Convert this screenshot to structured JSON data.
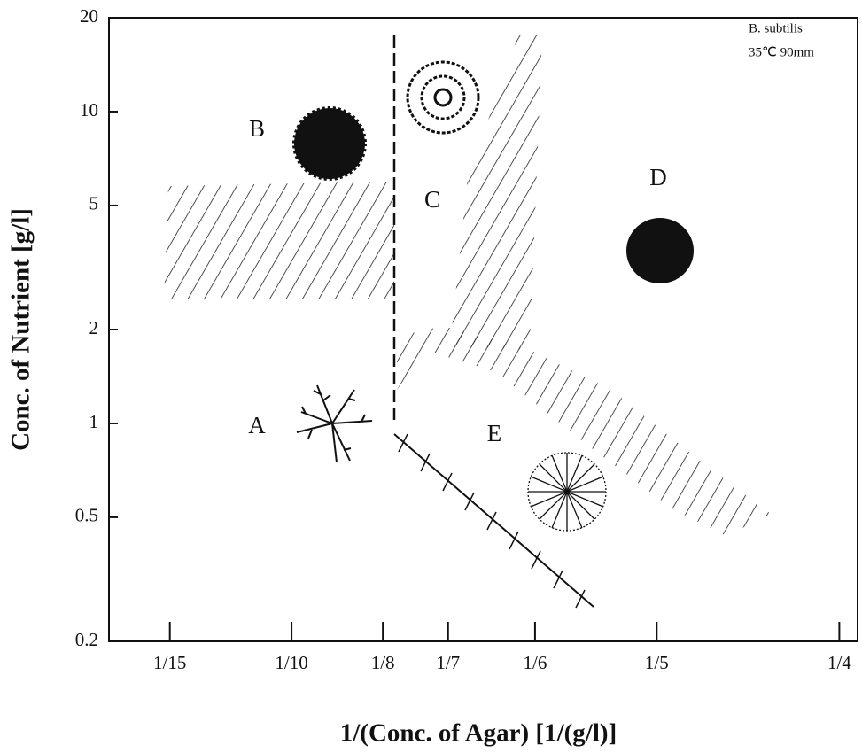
{
  "chart_data": {
    "type": "phase",
    "x_label": "1/(Conc. of Agar) [1/(g/l)]",
    "y_label": "Conc. of Nutrient [g/l]",
    "annotations": [
      "B. subtilis",
      "35℃  90mm"
    ],
    "regions": [
      "A",
      "B",
      "C",
      "D",
      "E"
    ],
    "xlim": [
      0.05,
      0.255
    ],
    "ylim": [
      0.2,
      20
    ],
    "ylog": true,
    "xticks": [
      {
        "value": 0.06667,
        "label": "1/15"
      },
      {
        "value": 0.1,
        "label": "1/10"
      },
      {
        "value": 0.125,
        "label": "1/8"
      },
      {
        "value": 0.14286,
        "label": "1/7"
      },
      {
        "value": 0.16667,
        "label": "1/6"
      },
      {
        "value": 0.2,
        "label": "1/5"
      },
      {
        "value": 0.25,
        "label": "1/4"
      }
    ],
    "yticks": [
      0.2,
      0.5,
      1,
      2,
      5,
      10,
      20
    ]
  }
}
